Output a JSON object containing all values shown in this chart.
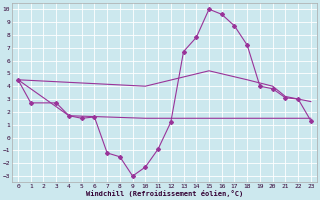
{
  "xlabel": "Windchill (Refroidissement éolien,°C)",
  "background_color": "#cce8ee",
  "grid_color": "#ffffff",
  "line_color": "#993399",
  "xlim": [
    -0.5,
    23.5
  ],
  "ylim": [
    -3.5,
    10.5
  ],
  "xticks": [
    0,
    1,
    2,
    3,
    4,
    5,
    6,
    7,
    8,
    9,
    10,
    11,
    12,
    13,
    14,
    15,
    16,
    17,
    18,
    19,
    20,
    21,
    22,
    23
  ],
  "yticks": [
    -3,
    -2,
    -1,
    0,
    1,
    2,
    3,
    4,
    5,
    6,
    7,
    8,
    9,
    10
  ],
  "wavy_x": [
    0,
    1,
    3,
    4,
    5,
    6,
    7,
    8,
    9,
    10,
    11,
    12,
    13,
    14,
    15,
    16,
    17,
    18,
    19,
    20,
    21,
    22,
    23
  ],
  "wavy_y": [
    4.5,
    2.7,
    2.7,
    1.7,
    1.5,
    1.6,
    -1.2,
    -1.5,
    -3.0,
    -2.3,
    -0.9,
    1.2,
    6.7,
    7.8,
    10.0,
    9.6,
    8.7,
    7.2,
    4.0,
    3.8,
    3.1,
    3.0,
    1.3
  ],
  "upper_x": [
    0,
    10,
    15,
    18,
    20,
    21,
    22,
    23
  ],
  "upper_y": [
    4.5,
    4.0,
    5.2,
    4.5,
    4.0,
    3.2,
    3.0,
    2.8
  ],
  "lower_x": [
    0,
    4,
    10,
    18,
    23
  ],
  "lower_y": [
    4.5,
    1.7,
    1.5,
    1.5,
    1.5
  ]
}
